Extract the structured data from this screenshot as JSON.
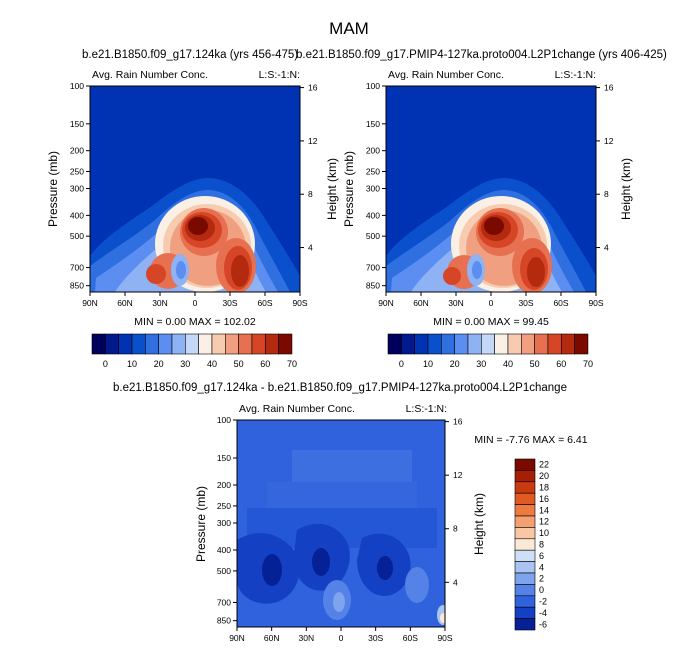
{
  "main_title": "MAM",
  "chart_data": [
    {
      "id": "p1",
      "type": "heatmap",
      "title": "b.e21.B1850.f09_g17.124ka (yrs 456-475)",
      "left_label": "Avg. Rain Number Conc.",
      "right_label": "L:S:-1:N:",
      "ylabel": "Pressure (mb)",
      "ylabel_right": "Height (km)",
      "x_ticks": [
        "90N",
        "60N",
        "30N",
        "0",
        "30S",
        "60S",
        "90S"
      ],
      "x_values": [
        90,
        60,
        30,
        0,
        -30,
        -60,
        -90
      ],
      "p_ticks": [
        100,
        150,
        200,
        250,
        300,
        400,
        500,
        700,
        850
      ],
      "height_ticks": [
        16,
        12,
        8,
        4
      ],
      "stats": "MIN =  0.00  MAX = 102.02",
      "colorbar": {
        "labels": [
          "0",
          "10",
          "20",
          "30",
          "40",
          "50",
          "60",
          "70"
        ]
      }
    },
    {
      "id": "p2",
      "type": "heatmap",
      "title": "b.e21.B1850.f09_g17.PMIP4-127ka.proto004.L2P1change (yrs 406-425)",
      "left_label": "Avg. Rain Number Conc.",
      "right_label": "L:S:-1:N:",
      "ylabel": "Pressure (mb)",
      "ylabel_right": "Height (km)",
      "x_ticks": [
        "90N",
        "60N",
        "30N",
        "0",
        "30S",
        "60S",
        "90S"
      ],
      "x_values": [
        90,
        60,
        30,
        0,
        -30,
        -60,
        -90
      ],
      "p_ticks": [
        100,
        150,
        200,
        250,
        300,
        400,
        500,
        700,
        850
      ],
      "height_ticks": [
        16,
        12,
        8,
        4
      ],
      "stats": "MIN =  0.00  MAX = 99.45",
      "colorbar": {
        "labels": [
          "0",
          "10",
          "20",
          "30",
          "40",
          "50",
          "60",
          "70"
        ]
      }
    },
    {
      "id": "p3",
      "type": "heatmap",
      "title": "b.e21.B1850.f09_g17.124ka - b.e21.B1850.f09_g17.PMIP4-127ka.proto004.L2P1change",
      "left_label": "Avg. Rain Number Conc.",
      "right_label": "L:S:-1:N:",
      "ylabel": "Pressure (mb)",
      "ylabel_right": "Height (km)",
      "x_ticks": [
        "90N",
        "60N",
        "30N",
        "0",
        "30S",
        "60S",
        "90S"
      ],
      "x_values": [
        90,
        60,
        30,
        0,
        -30,
        -60,
        -90
      ],
      "p_ticks": [
        100,
        150,
        200,
        250,
        300,
        400,
        500,
        700,
        850
      ],
      "height_ticks": [
        16,
        12,
        8,
        4
      ],
      "stats": "MIN = -7.76  MAX =  6.41",
      "colorbar": {
        "labels": [
          "22",
          "20",
          "18",
          "16",
          "14",
          "12",
          "10",
          "8",
          "6",
          "4",
          "2",
          "0",
          "-2",
          "-4",
          "-6"
        ]
      }
    }
  ],
  "colors": {
    "seq": [
      "#00005c",
      "#001a8c",
      "#0033b3",
      "#0a50cc",
      "#2f6fe0",
      "#5b8ef0",
      "#8fb2f5",
      "#c6d8f7",
      "#faf0e6",
      "#f7cbb0",
      "#f0a080",
      "#e67050",
      "#d64526",
      "#b32a0f",
      "#7a0a00"
    ],
    "div": [
      "#7a0a00",
      "#a81e05",
      "#c93a10",
      "#e05a22",
      "#ef7a40",
      "#f5a070",
      "#f8c8a4",
      "#fbe9d8",
      "#cfdff6",
      "#a9c4f2",
      "#7ea4ee",
      "#5482e6",
      "#2f62dc",
      "#1440c4",
      "#062096"
    ]
  }
}
